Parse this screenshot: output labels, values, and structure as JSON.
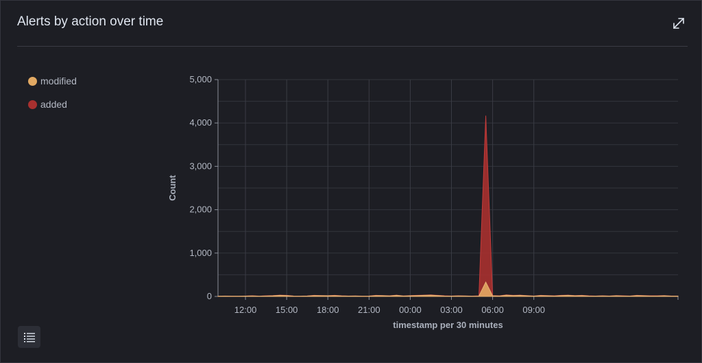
{
  "panel": {
    "title": "Alerts by action over time"
  },
  "icons": {
    "expand": "expand-arrows-icon",
    "legend_toggle": "list-icon"
  },
  "colors": {
    "added": "#a8302f",
    "modified": "#e2a963",
    "background": "#1d1e24",
    "grid": "#3a3c44"
  },
  "legend": [
    {
      "label": "modified",
      "color": "#e2a963"
    },
    {
      "label": "added",
      "color": "#a8302f"
    }
  ],
  "chart_data": {
    "type": "area",
    "stacked": true,
    "xlabel": "timestamp per 30 minutes",
    "ylabel": "Count",
    "ylim": [
      0,
      5000
    ],
    "y_ticks": [
      0,
      1000,
      2000,
      3000,
      4000,
      5000
    ],
    "y_tick_labels": [
      "0",
      "1,000",
      "2,000",
      "3,000",
      "4,000",
      "5,000"
    ],
    "x_tick_labels": [
      "12:00",
      "15:00",
      "18:00",
      "21:00",
      "00:00",
      "03:00",
      "06:00",
      "09:00"
    ],
    "x_start_time": "10:00",
    "x_interval_minutes": 30,
    "series": [
      {
        "name": "modified",
        "color": "#e2a963",
        "values": [
          5,
          8,
          6,
          5,
          8,
          12,
          6,
          10,
          15,
          25,
          20,
          8,
          6,
          10,
          20,
          18,
          15,
          20,
          12,
          8,
          10,
          5,
          8,
          20,
          18,
          12,
          25,
          10,
          15,
          20,
          25,
          30,
          20,
          10,
          8,
          12,
          10,
          5,
          8,
          330,
          15,
          10,
          30,
          20,
          25,
          15,
          8,
          20,
          15,
          10,
          20,
          25,
          15,
          20,
          10,
          8,
          12,
          8,
          15,
          10,
          8,
          20,
          15,
          10,
          10,
          15,
          8,
          8
        ]
      },
      {
        "name": "added",
        "color": "#a8302f",
        "values": [
          5,
          10,
          8,
          6,
          10,
          15,
          8,
          15,
          20,
          30,
          25,
          10,
          8,
          12,
          25,
          20,
          18,
          25,
          15,
          10,
          12,
          8,
          10,
          25,
          20,
          15,
          30,
          12,
          20,
          25,
          30,
          35,
          25,
          15,
          10,
          15,
          12,
          8,
          15,
          4170,
          20,
          15,
          35,
          25,
          30,
          20,
          10,
          25,
          20,
          15,
          25,
          30,
          20,
          25,
          15,
          10,
          15,
          10,
          20,
          15,
          10,
          25,
          20,
          15,
          15,
          20,
          10,
          10
        ]
      }
    ]
  }
}
